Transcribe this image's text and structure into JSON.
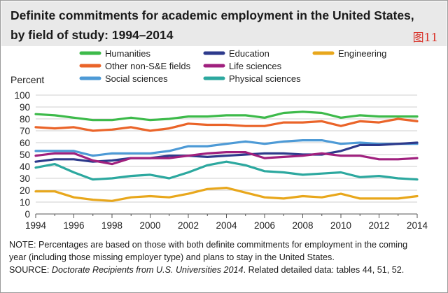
{
  "header": {
    "title_line1": "Definite commitments for academic employment in the United States,",
    "title_line2": "by field of study: 1994–2014",
    "stamp": "图11"
  },
  "colors": {
    "Humanities": "#3dba4a",
    "Other non-S&E fields": "#ea6429",
    "Social sciences": "#4d9ad6",
    "Education": "#2d3a8c",
    "Life sciences": "#a0207e",
    "Physical sciences": "#2ca89f",
    "Engineering": "#e8a71c"
  },
  "chart_data": {
    "type": "line",
    "title": "Definite commitments for academic employment in the United States, by field of study: 1994–2014",
    "ylabel": "Percent",
    "xlabel": "",
    "ylim": [
      0,
      100
    ],
    "xlim": [
      1994,
      2014
    ],
    "yticks": [
      "0",
      "10",
      "20",
      "30",
      "40",
      "50",
      "60",
      "70",
      "80",
      "90",
      "100"
    ],
    "xticks": [
      "1994",
      "1996",
      "1998",
      "2000",
      "2002",
      "2004",
      "2006",
      "2008",
      "2010",
      "2012",
      "2014"
    ],
    "x": [
      1994,
      1995,
      1996,
      1997,
      1998,
      1999,
      2000,
      2001,
      2002,
      2003,
      2004,
      2005,
      2006,
      2007,
      2008,
      2009,
      2010,
      2011,
      2012,
      2013,
      2014
    ],
    "grid": true,
    "legend_placement": "top",
    "series": [
      {
        "name": "Humanities",
        "values": [
          84,
          83,
          81,
          79,
          79,
          81,
          79,
          80,
          82,
          82,
          83,
          83,
          81,
          85,
          86,
          85,
          81,
          83,
          82,
          82,
          82
        ]
      },
      {
        "name": "Other non-S&E fields",
        "values": [
          73,
          72,
          73,
          70,
          71,
          73,
          70,
          72,
          76,
          75,
          75,
          74,
          74,
          77,
          77,
          78,
          74,
          78,
          77,
          80,
          78
        ]
      },
      {
        "name": "Social sciences",
        "values": [
          53,
          53,
          53,
          49,
          51,
          51,
          51,
          53,
          57,
          57,
          59,
          61,
          59,
          61,
          62,
          62,
          59,
          60,
          59,
          59,
          59
        ]
      },
      {
        "name": "Education",
        "values": [
          44,
          46,
          46,
          44,
          45,
          47,
          47,
          49,
          49,
          48,
          49,
          50,
          51,
          51,
          50,
          50,
          53,
          58,
          58,
          59,
          60
        ]
      },
      {
        "name": "Life sciences",
        "values": [
          49,
          51,
          51,
          45,
          42,
          47,
          47,
          47,
          49,
          51,
          52,
          52,
          47,
          48,
          49,
          51,
          49,
          49,
          46,
          46,
          47
        ]
      },
      {
        "name": "Physical sciences",
        "values": [
          39,
          42,
          35,
          29,
          30,
          32,
          33,
          30,
          35,
          41,
          44,
          41,
          36,
          35,
          33,
          34,
          35,
          31,
          32,
          30,
          29
        ]
      },
      {
        "name": "Engineering",
        "values": [
          19,
          19,
          14,
          12,
          11,
          14,
          15,
          14,
          17,
          21,
          22,
          18,
          14,
          13,
          15,
          14,
          17,
          13,
          13,
          13,
          15
        ]
      }
    ]
  },
  "notes": {
    "note_line1": "NOTE: Percentages are based on those with both definite commitments for employment in the coming",
    "note_line2": "year (including those missing employer type) and plans to stay in the United States.",
    "source_prefix": "SOURCE: ",
    "source_title": "Doctorate Recipients from U.S. Universities 2014",
    "source_suffix": ". Related detailed data: tables 44, 51, 52."
  }
}
